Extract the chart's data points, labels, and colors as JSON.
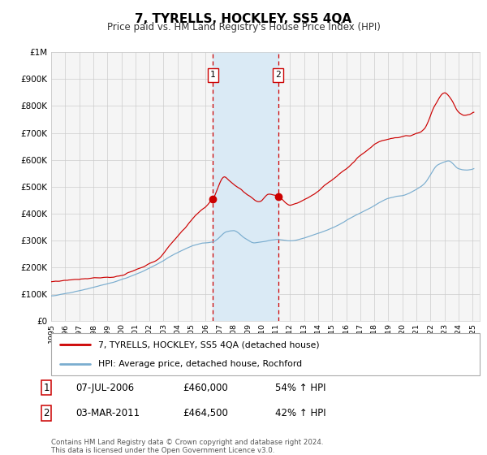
{
  "title": "7, TYRELLS, HOCKLEY, SS5 4QA",
  "subtitle": "Price paid vs. HM Land Registry's House Price Index (HPI)",
  "legend_line1": "7, TYRELLS, HOCKLEY, SS5 4QA (detached house)",
  "legend_line2": "HPI: Average price, detached house, Rochford",
  "sale1_date": "07-JUL-2006",
  "sale1_price": 460000,
  "sale1_hpi": "54% ↑ HPI",
  "sale2_date": "03-MAR-2011",
  "sale2_price": 464500,
  "sale2_hpi": "42% ↑ HPI",
  "footer_line1": "Contains HM Land Registry data © Crown copyright and database right 2024.",
  "footer_line2": "This data is licensed under the Open Government Licence v3.0.",
  "xmin": 1995.0,
  "xmax": 2025.5,
  "ymin": 0,
  "ymax": 1000000,
  "red_color": "#cc0000",
  "blue_color": "#7aadcf",
  "shade_color": "#daeaf5",
  "grid_color": "#cccccc",
  "bg_color": "#f5f5f5",
  "sale1_x": 2006.52,
  "sale2_x": 2011.17,
  "red_ctrl_x": [
    1995.0,
    1996.5,
    1998.0,
    1999.5,
    2001.0,
    2002.5,
    2004.0,
    2005.5,
    2006.52,
    2007.3,
    2007.8,
    2008.5,
    2009.0,
    2009.8,
    2010.5,
    2011.17,
    2012.0,
    2013.0,
    2014.5,
    2016.0,
    2017.5,
    2018.5,
    2019.5,
    2020.5,
    2021.5,
    2022.3,
    2023.0,
    2023.5,
    2024.0,
    2024.5,
    2025.0
  ],
  "red_ctrl_y": [
    145000,
    155000,
    168000,
    175000,
    195000,
    230000,
    320000,
    410000,
    460000,
    545000,
    520000,
    490000,
    465000,
    440000,
    470000,
    464500,
    435000,
    455000,
    510000,
    580000,
    650000,
    690000,
    700000,
    705000,
    730000,
    820000,
    870000,
    845000,
    800000,
    790000,
    795000
  ],
  "blue_ctrl_x": [
    1995.0,
    1996.5,
    1998.0,
    2000.0,
    2002.0,
    2004.0,
    2005.5,
    2006.52,
    2007.5,
    2008.0,
    2008.8,
    2009.5,
    2010.0,
    2011.17,
    2012.0,
    2013.0,
    2014.5,
    2016.0,
    2017.5,
    2018.5,
    2019.5,
    2020.0,
    2021.5,
    2022.5,
    2023.3,
    2024.0,
    2024.5,
    2025.0
  ],
  "blue_ctrl_y": [
    93000,
    108000,
    128000,
    158000,
    200000,
    255000,
    290000,
    298000,
    340000,
    345000,
    315000,
    298000,
    300000,
    310000,
    305000,
    315000,
    340000,
    375000,
    415000,
    445000,
    465000,
    470000,
    510000,
    580000,
    595000,
    565000,
    560000,
    565000
  ]
}
